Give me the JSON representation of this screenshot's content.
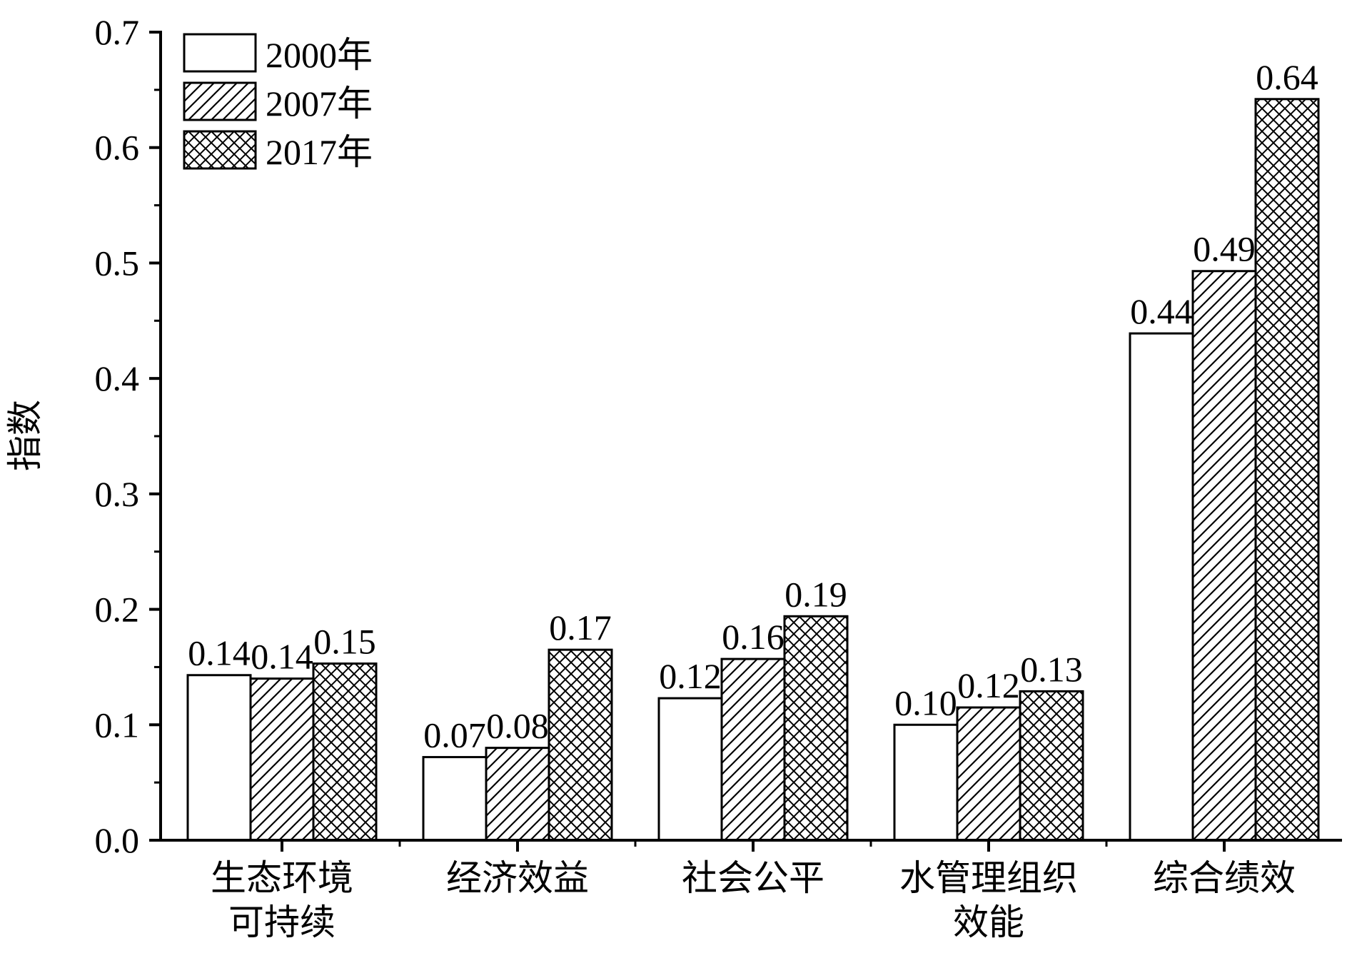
{
  "chart_data": {
    "type": "bar",
    "ylabel": "指数",
    "xlabel": "",
    "ylim": [
      0,
      0.7
    ],
    "yticks": [
      "0.0",
      "0.1",
      "0.2",
      "0.3",
      "0.4",
      "0.5",
      "0.6",
      "0.7"
    ],
    "categories": [
      [
        "生态环境",
        "可持续"
      ],
      [
        "经济效益"
      ],
      [
        "社会公平"
      ],
      [
        "水管理组织",
        "效能"
      ],
      [
        "综合绩效"
      ]
    ],
    "series": [
      {
        "name": "2000年",
        "pattern": "none",
        "values": [
          0.143,
          0.072,
          0.123,
          0.1,
          0.439
        ],
        "labels": [
          "0.14",
          "0.07",
          "0.12",
          "0.10",
          "0.44"
        ]
      },
      {
        "name": "2007年",
        "pattern": "hatch",
        "values": [
          0.14,
          0.08,
          0.157,
          0.115,
          0.493
        ],
        "labels": [
          "0.14",
          "0.08",
          "0.16",
          "0.12",
          "0.49"
        ]
      },
      {
        "name": "2017年",
        "pattern": "crosshatch",
        "values": [
          0.153,
          0.165,
          0.194,
          0.129,
          0.642
        ],
        "labels": [
          "0.15",
          "0.17",
          "0.19",
          "0.13",
          "0.64"
        ]
      }
    ],
    "legend_position": "top-left",
    "grid": false,
    "colors": {
      "bar_stroke": "#000000",
      "bar_fill": "#ffffff",
      "axis": "#000000"
    }
  }
}
